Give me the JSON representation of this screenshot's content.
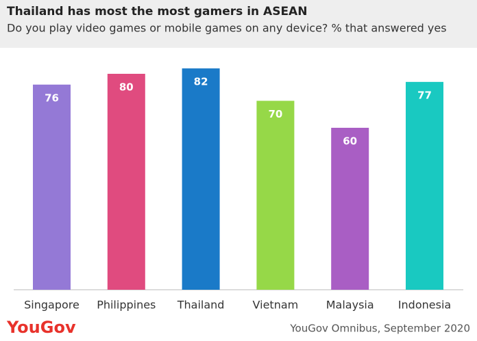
{
  "chart_data": {
    "type": "bar",
    "title": "Thailand has most the most gamers in ASEAN",
    "subtitle": "Do you play video games or mobile games on any device? % that answered yes",
    "categories": [
      "Singapore",
      "Philippines",
      "Thailand",
      "Vietnam",
      "Malaysia",
      "Indonesia"
    ],
    "values": [
      76,
      80,
      82,
      70,
      60,
      77
    ],
    "colors": [
      "#9479d6",
      "#e04b7f",
      "#1a7ac8",
      "#96d848",
      "#a95ec4",
      "#19c9c1"
    ],
    "logo": "YouGov",
    "source": "YouGov Omnibus, September 2020"
  }
}
